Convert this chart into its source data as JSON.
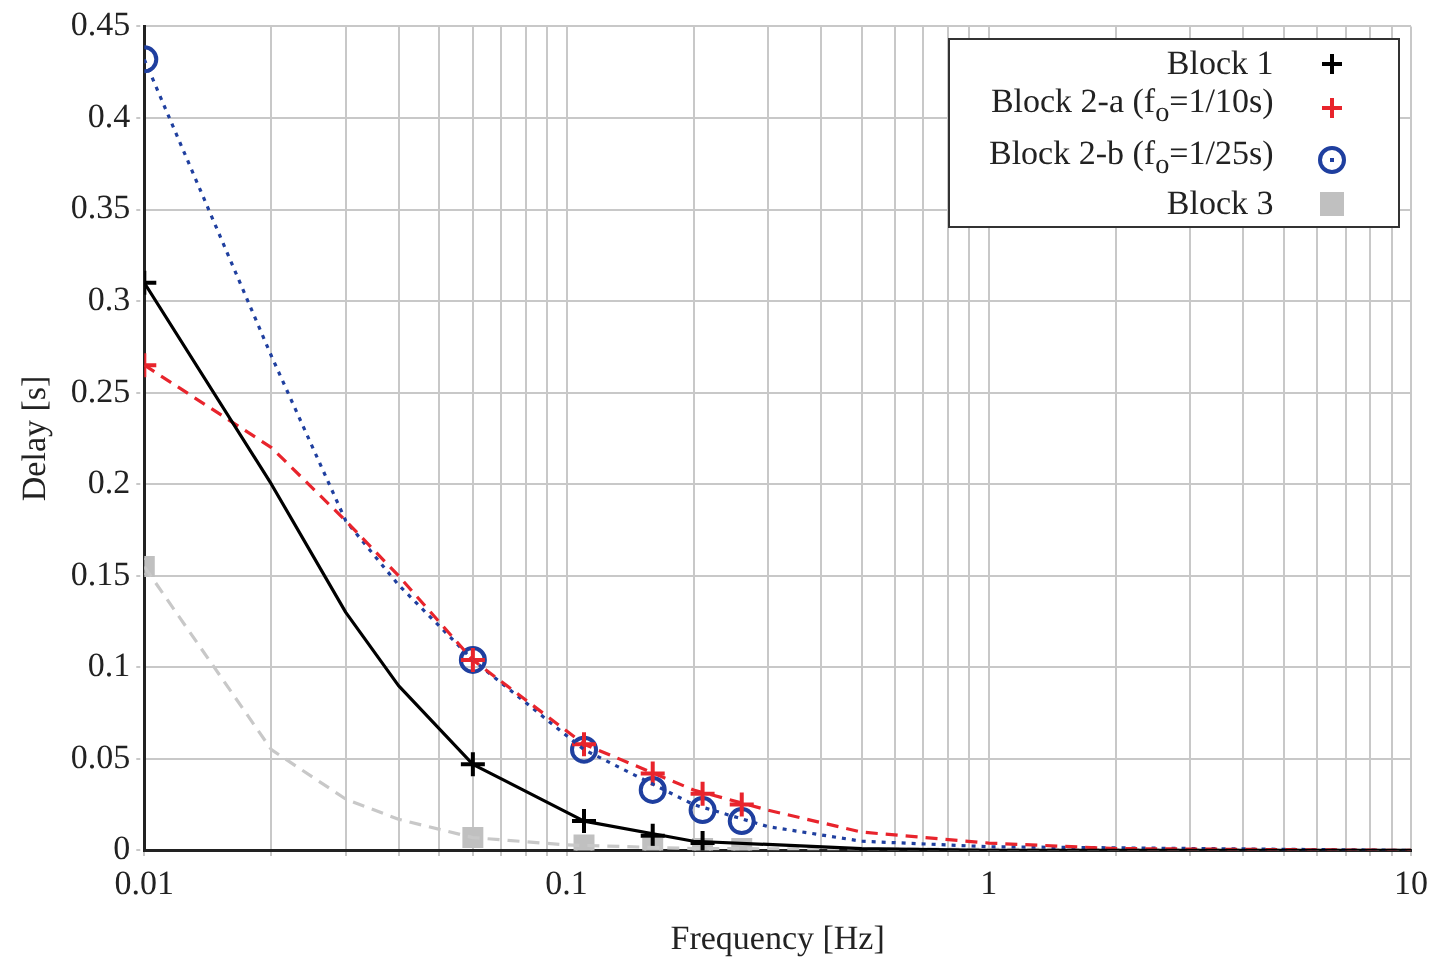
{
  "chart_data": {
    "type": "line",
    "xlabel": "Frequency [Hz]",
    "ylabel": "Delay [s]",
    "log": "x",
    "grid": true,
    "legend": "top right",
    "xlim": [
      0.01,
      10
    ],
    "ylim": [
      0,
      0.45
    ],
    "xticks": [
      0.01,
      {
        "value": 0.02,
        "label": null
      },
      {
        "value": 0.03,
        "label": null
      },
      {
        "value": 0.04,
        "label": null
      },
      {
        "value": 0.05,
        "label": null
      },
      {
        "value": 0.06,
        "label": null
      },
      {
        "value": 0.07,
        "label": null
      },
      {
        "value": 0.08,
        "label": null
      },
      {
        "value": 0.09,
        "label": null
      },
      0.1,
      {
        "value": 0.2,
        "label": null
      },
      {
        "value": 0.3,
        "label": null
      },
      {
        "value": 0.4,
        "label": null
      },
      {
        "value": 0.5,
        "label": null
      },
      {
        "value": 0.6,
        "label": null
      },
      {
        "value": 0.7,
        "label": null
      },
      {
        "value": 0.8,
        "label": null
      },
      {
        "value": 0.9,
        "label": null
      },
      1,
      {
        "value": 2,
        "label": null
      },
      {
        "value": 3,
        "label": null
      },
      {
        "value": 4,
        "label": null
      },
      {
        "value": 5,
        "label": null
      },
      {
        "value": 6,
        "label": null
      },
      {
        "value": 7,
        "label": null
      },
      {
        "value": 8,
        "label": null
      },
      {
        "value": 9,
        "label": null
      },
      10
    ],
    "yticks": [
      0,
      0.05,
      0.1,
      0.15,
      0.2,
      0.25,
      0.3,
      0.35,
      0.4,
      0.45
    ],
    "series": [
      {
        "color": "#000000",
        "line_style": "solid",
        "marker": "none",
        "x": [
          0.01,
          0.02,
          0.03,
          0.04,
          0.06,
          0.11,
          0.2,
          0.5,
          1,
          10
        ],
        "values": [
          0.31,
          0.2,
          0.13,
          0.09,
          0.047,
          0.016,
          0.005,
          0.001,
          0,
          0
        ]
      },
      {
        "color": "#e8242c",
        "line_style": "dashed",
        "marker": "none",
        "x": [
          0.01,
          0.02,
          0.03,
          0.04,
          0.06,
          0.11,
          0.2,
          0.3,
          0.5,
          1,
          2,
          10
        ],
        "values": [
          0.265,
          0.22,
          0.18,
          0.15,
          0.104,
          0.058,
          0.033,
          0.022,
          0.01,
          0.004,
          0.001,
          0
        ]
      },
      {
        "color": "#1f3f9f",
        "line_style": "dotted",
        "marker": "none",
        "x": [
          0.01,
          0.02,
          0.03,
          0.04,
          0.06,
          0.11,
          0.2,
          0.3,
          0.5,
          1,
          10
        ],
        "values": [
          0.432,
          0.27,
          0.18,
          0.145,
          0.104,
          0.055,
          0.025,
          0.013,
          0.005,
          0.002,
          0
        ]
      },
      {
        "color": "#c8c8c8",
        "line_style": "dashed",
        "marker": "none",
        "x": [
          0.01,
          0.02,
          0.03,
          0.04,
          0.06,
          0.1,
          0.2,
          10
        ],
        "values": [
          0.155,
          0.055,
          0.028,
          0.017,
          0.007,
          0.003,
          0.001,
          0
        ]
      },
      {
        "type": "scatter",
        "name": "Block 1",
        "color": "#000000",
        "marker": "cross",
        "x": [
          0.01,
          0.06,
          0.11,
          0.16,
          0.21
        ],
        "values": [
          0.31,
          0.047,
          0.016,
          0.008,
          0.004
        ]
      },
      {
        "type": "scatter",
        "name": "Block 2-a (f$_{o}$=1/10s)",
        "color": "#e8242c",
        "marker": "cross",
        "x": [
          0.01,
          0.06,
          0.11,
          0.16,
          0.21,
          0.26
        ],
        "values": [
          0.265,
          0.104,
          0.058,
          0.042,
          0.031,
          0.025
        ]
      },
      {
        "type": "scatter",
        "name": "Block 2-b (f$_{o}$=1/25s)",
        "color": "#1f3f9f",
        "marker": "circle",
        "x": [
          0.01,
          0.06,
          0.11,
          0.16,
          0.21,
          0.26
        ],
        "values": [
          0.432,
          0.104,
          0.055,
          0.033,
          0.022,
          0.016
        ]
      },
      {
        "type": "scatter",
        "name": "Block 3",
        "color": "#c0c0c0",
        "marker": "square",
        "x": [
          0.01,
          0.06,
          0.11,
          0.16,
          0.21,
          0.26
        ],
        "values": [
          0.155,
          0.007,
          0.003,
          0.001,
          0.001,
          0.001
        ]
      }
    ]
  }
}
